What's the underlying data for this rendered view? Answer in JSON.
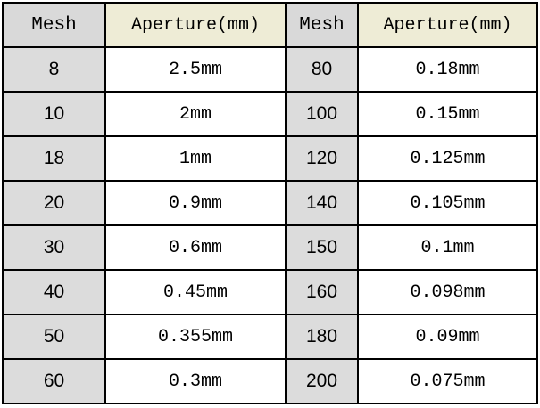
{
  "table": {
    "header": [
      "Mesh",
      "Aperture(mm)",
      "Mesh",
      "Aperture(mm)"
    ],
    "rows": [
      [
        "8",
        "2.5mm",
        "80",
        "0.18mm"
      ],
      [
        "10",
        "2mm",
        "100",
        "0.15mm"
      ],
      [
        "18",
        "1mm",
        "120",
        "0.125mm"
      ],
      [
        "20",
        "0.9mm",
        "140",
        "0.105mm"
      ],
      [
        "30",
        "0.6mm",
        "150",
        "0.1mm"
      ],
      [
        "40",
        "0.45mm",
        "160",
        "0.098mm"
      ],
      [
        "50",
        "0.355mm",
        "180",
        "0.09mm"
      ],
      [
        "60",
        "0.3mm",
        "200",
        "0.075mm"
      ]
    ]
  }
}
